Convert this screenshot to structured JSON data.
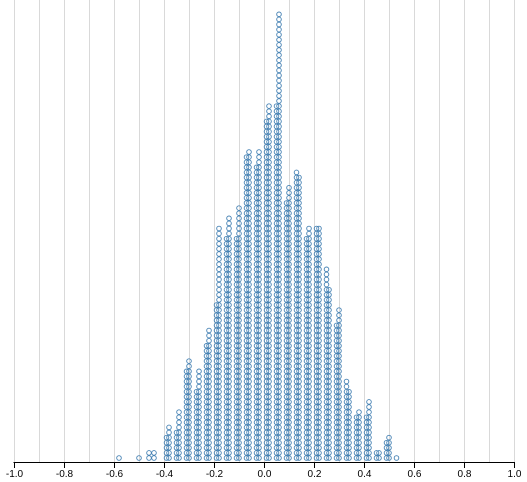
{
  "chart_data": {
    "type": "scatter",
    "style": "dot-plot of hollow circles stacked in columns along the x axis",
    "xlim": [
      -1.0,
      1.0
    ],
    "x_ticks": [
      "-1.0",
      "-0.8",
      "-0.6",
      "-0.4",
      "-0.2",
      "0.0",
      "0.2",
      "0.4",
      "0.6",
      "0.8",
      "1.0"
    ],
    "grid": "vertical lines every 0.1",
    "y_axis_shown": false,
    "marker": "hollow circle",
    "point_color": "#4682b4",
    "grid_color": "#d9d9d9",
    "columns": [
      {
        "x": -0.58,
        "count": 1
      },
      {
        "x": -0.5,
        "count": 1
      },
      {
        "x": -0.46,
        "count": 2
      },
      {
        "x": -0.44,
        "count": 2
      },
      {
        "x": -0.39,
        "count": 5
      },
      {
        "x": -0.38,
        "count": 7
      },
      {
        "x": -0.35,
        "count": 6
      },
      {
        "x": -0.34,
        "count": 10
      },
      {
        "x": -0.31,
        "count": 18
      },
      {
        "x": -0.3,
        "count": 20
      },
      {
        "x": -0.27,
        "count": 14
      },
      {
        "x": -0.26,
        "count": 18
      },
      {
        "x": -0.23,
        "count": 23
      },
      {
        "x": -0.22,
        "count": 26
      },
      {
        "x": -0.19,
        "count": 31
      },
      {
        "x": -0.18,
        "count": 46
      },
      {
        "x": -0.15,
        "count": 44
      },
      {
        "x": -0.14,
        "count": 48
      },
      {
        "x": -0.11,
        "count": 44
      },
      {
        "x": -0.1,
        "count": 50
      },
      {
        "x": -0.07,
        "count": 60
      },
      {
        "x": -0.06,
        "count": 61
      },
      {
        "x": -0.03,
        "count": 58
      },
      {
        "x": -0.02,
        "count": 61
      },
      {
        "x": 0.01,
        "count": 67
      },
      {
        "x": 0.02,
        "count": 70
      },
      {
        "x": 0.05,
        "count": 70
      },
      {
        "x": 0.06,
        "count": 88
      },
      {
        "x": 0.09,
        "count": 51
      },
      {
        "x": 0.1,
        "count": 54
      },
      {
        "x": 0.13,
        "count": 57
      },
      {
        "x": 0.14,
        "count": 56
      },
      {
        "x": 0.17,
        "count": 44
      },
      {
        "x": 0.18,
        "count": 46
      },
      {
        "x": 0.21,
        "count": 46
      },
      {
        "x": 0.22,
        "count": 46
      },
      {
        "x": 0.25,
        "count": 38
      },
      {
        "x": 0.26,
        "count": 34
      },
      {
        "x": 0.29,
        "count": 27
      },
      {
        "x": 0.3,
        "count": 30
      },
      {
        "x": 0.33,
        "count": 16
      },
      {
        "x": 0.34,
        "count": 14
      },
      {
        "x": 0.37,
        "count": 9
      },
      {
        "x": 0.38,
        "count": 10
      },
      {
        "x": 0.41,
        "count": 9
      },
      {
        "x": 0.42,
        "count": 12
      },
      {
        "x": 0.45,
        "count": 2
      },
      {
        "x": 0.46,
        "count": 2
      },
      {
        "x": 0.49,
        "count": 4
      },
      {
        "x": 0.5,
        "count": 5
      },
      {
        "x": 0.53,
        "count": 1
      }
    ]
  }
}
